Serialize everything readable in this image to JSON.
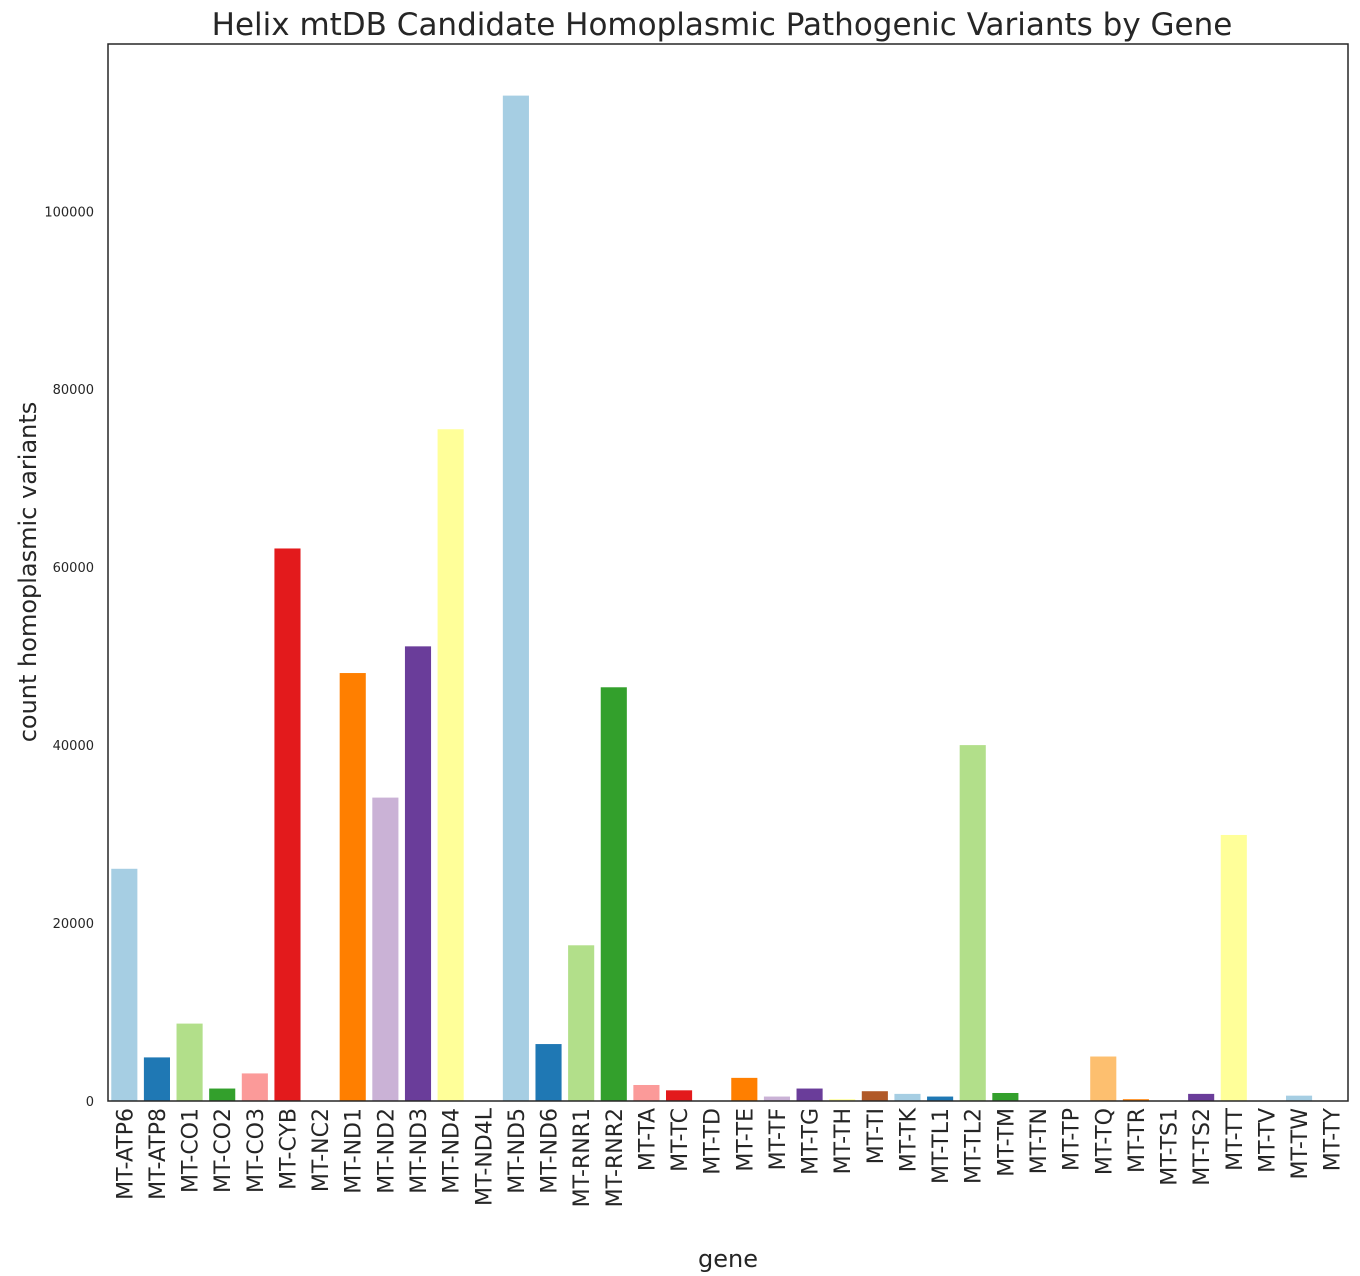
{
  "chart_data": {
    "type": "bar",
    "title": "Helix mtDB Candidate Homoplasmic Pathogenic Variants by Gene",
    "xlabel": "gene",
    "ylabel": "count homoplasmic variants",
    "ylim": [
      0,
      118800
    ],
    "yticks": [
      0,
      20000,
      40000,
      60000,
      80000,
      100000
    ],
    "ytick_labels": [
      "0",
      "20000",
      "40000",
      "60000",
      "80000",
      "100000"
    ],
    "grid": false,
    "categories": [
      "MT-ATP6",
      "MT-ATP8",
      "MT-CO1",
      "MT-CO2",
      "MT-CO3",
      "MT-CYB",
      "MT-NC2",
      "MT-ND1",
      "MT-ND2",
      "MT-ND3",
      "MT-ND4",
      "MT-ND4L",
      "MT-ND5",
      "MT-ND6",
      "MT-RNR1",
      "MT-RNR2",
      "MT-TA",
      "MT-TC",
      "MT-TD",
      "MT-TE",
      "MT-TF",
      "MT-TG",
      "MT-TH",
      "MT-TI",
      "MT-TK",
      "MT-TL1",
      "MT-TL2",
      "MT-TM",
      "MT-TN",
      "MT-TP",
      "MT-TQ",
      "MT-TR",
      "MT-TS1",
      "MT-TS2",
      "MT-TT",
      "MT-TV",
      "MT-TW",
      "MT-TY"
    ],
    "values": [
      26100,
      4900,
      8700,
      1400,
      3100,
      62100,
      0,
      48100,
      34100,
      51100,
      75500,
      0,
      113000,
      6400,
      17500,
      46500,
      1800,
      1200,
      0,
      2600,
      500,
      1400,
      200,
      1100,
      800,
      500,
      40000,
      900,
      0,
      0,
      5000,
      200,
      0,
      800,
      29900,
      0,
      600,
      0
    ],
    "colors": [
      "#a6cee3",
      "#1f78b4",
      "#b2df8a",
      "#33a02c",
      "#fb9a99",
      "#e31a1c",
      "#fdbf6f",
      "#ff7f00",
      "#cab2d6",
      "#6a3d9a",
      "#ffff99",
      "#b15928"
    ]
  }
}
